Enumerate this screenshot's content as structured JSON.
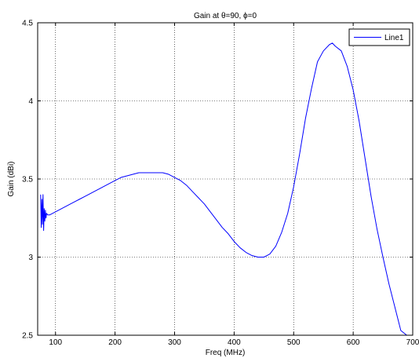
{
  "chart_data": {
    "type": "line",
    "title": "Gain at θ=90, ϕ=0",
    "xlabel": "Freq (MHz)",
    "ylabel": "Gain (dBi)",
    "xlim": [
      70,
      700
    ],
    "ylim": [
      2.5,
      4.5
    ],
    "xticks": [
      100,
      200,
      300,
      400,
      500,
      600,
      700
    ],
    "yticks": [
      2.5,
      3,
      3.5,
      4,
      4.5
    ],
    "ytick_labels": [
      "2.5",
      "3",
      "3.5",
      "4",
      "4.5"
    ],
    "grid": true,
    "legend_position": "top-right",
    "colors": {
      "line": "#0000ff",
      "grid": "#000000",
      "axis": "#000000"
    },
    "series": [
      {
        "name": "Line1",
        "x": [
          75,
          76,
          77,
          78,
          79,
          80,
          81,
          82,
          83,
          84,
          85,
          87,
          90,
          95,
          100,
          110,
          120,
          130,
          140,
          150,
          160,
          170,
          180,
          190,
          200,
          210,
          220,
          230,
          240,
          250,
          260,
          270,
          280,
          290,
          300,
          310,
          320,
          330,
          340,
          350,
          360,
          370,
          380,
          390,
          400,
          410,
          420,
          430,
          440,
          445,
          450,
          455,
          460,
          470,
          480,
          490,
          500,
          510,
          520,
          530,
          540,
          550,
          560,
          565,
          570,
          580,
          590,
          600,
          610,
          620,
          630,
          640,
          650,
          660,
          670,
          680,
          690
        ],
        "y": [
          3.4,
          3.19,
          3.37,
          3.21,
          3.4,
          3.17,
          3.31,
          3.23,
          3.3,
          3.25,
          3.28,
          3.27,
          3.27,
          3.28,
          3.29,
          3.31,
          3.33,
          3.35,
          3.37,
          3.39,
          3.41,
          3.43,
          3.45,
          3.47,
          3.49,
          3.51,
          3.52,
          3.53,
          3.54,
          3.54,
          3.54,
          3.54,
          3.54,
          3.53,
          3.51,
          3.49,
          3.46,
          3.42,
          3.38,
          3.34,
          3.29,
          3.24,
          3.19,
          3.15,
          3.1,
          3.06,
          3.03,
          3.01,
          3.0,
          3.0,
          3.0,
          3.01,
          3.02,
          3.07,
          3.16,
          3.28,
          3.45,
          3.66,
          3.89,
          4.08,
          4.25,
          4.32,
          4.36,
          4.37,
          4.35,
          4.32,
          4.22,
          4.07,
          3.87,
          3.63,
          3.39,
          3.18,
          3.0,
          2.83,
          2.68,
          2.53,
          2.5
        ]
      }
    ]
  }
}
